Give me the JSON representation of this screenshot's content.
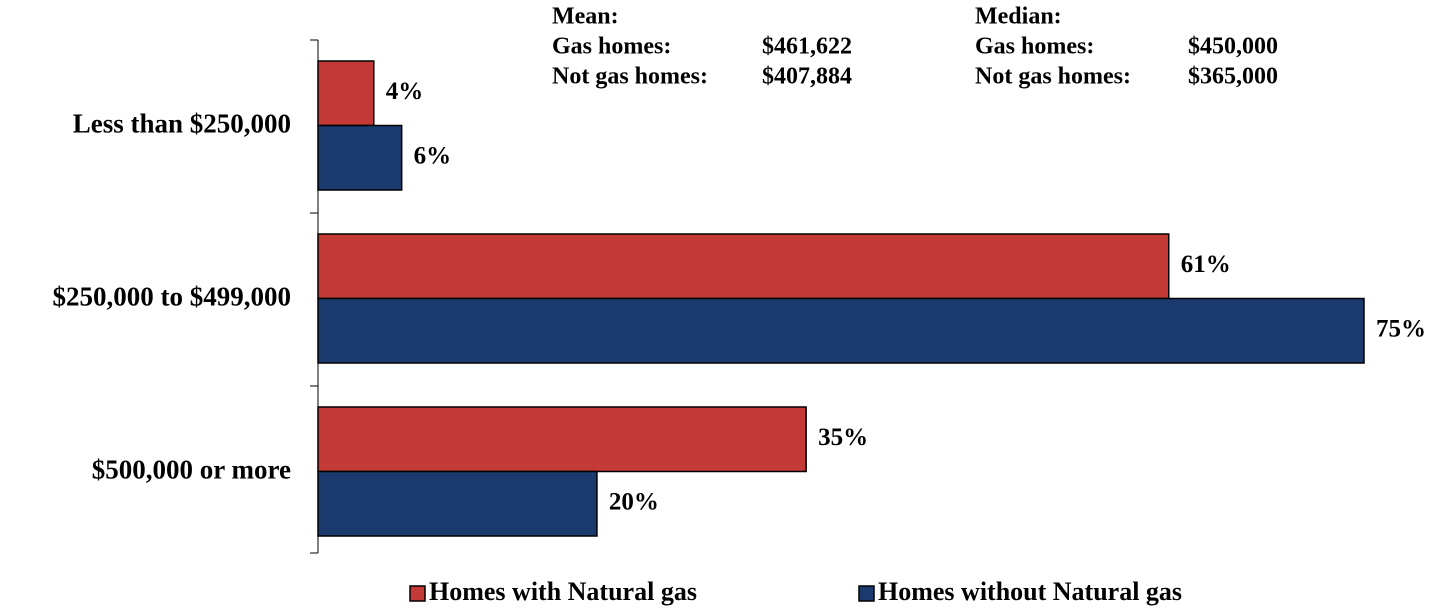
{
  "chart_data": {
    "type": "bar",
    "orientation": "horizontal",
    "categories": [
      "Less than $250,000",
      "$250,000 to $499,000",
      "$500,000 or more"
    ],
    "series": [
      {
        "name": "Homes with Natural gas",
        "color": "#c43a36",
        "values": [
          4,
          61,
          35
        ],
        "value_labels": [
          "4%",
          "61%",
          "35%"
        ]
      },
      {
        "name": "Homes without Natural gas",
        "color": "#1b3b6f",
        "values": [
          6,
          75,
          20
        ],
        "value_labels": [
          "6%",
          "75%",
          "20%"
        ]
      }
    ],
    "annotations": [
      {
        "title": "Mean:",
        "rows": [
          {
            "label": "Gas homes:",
            "value": "$461,622"
          },
          {
            "label": "Not gas homes:",
            "value": "$407,884"
          }
        ]
      },
      {
        "title": "Median:",
        "rows": [
          {
            "label": "Gas homes:",
            "value": "$450,000"
          },
          {
            "label": "Not gas homes:",
            "value": "$365,000"
          }
        ]
      }
    ],
    "legend": "bottom"
  }
}
